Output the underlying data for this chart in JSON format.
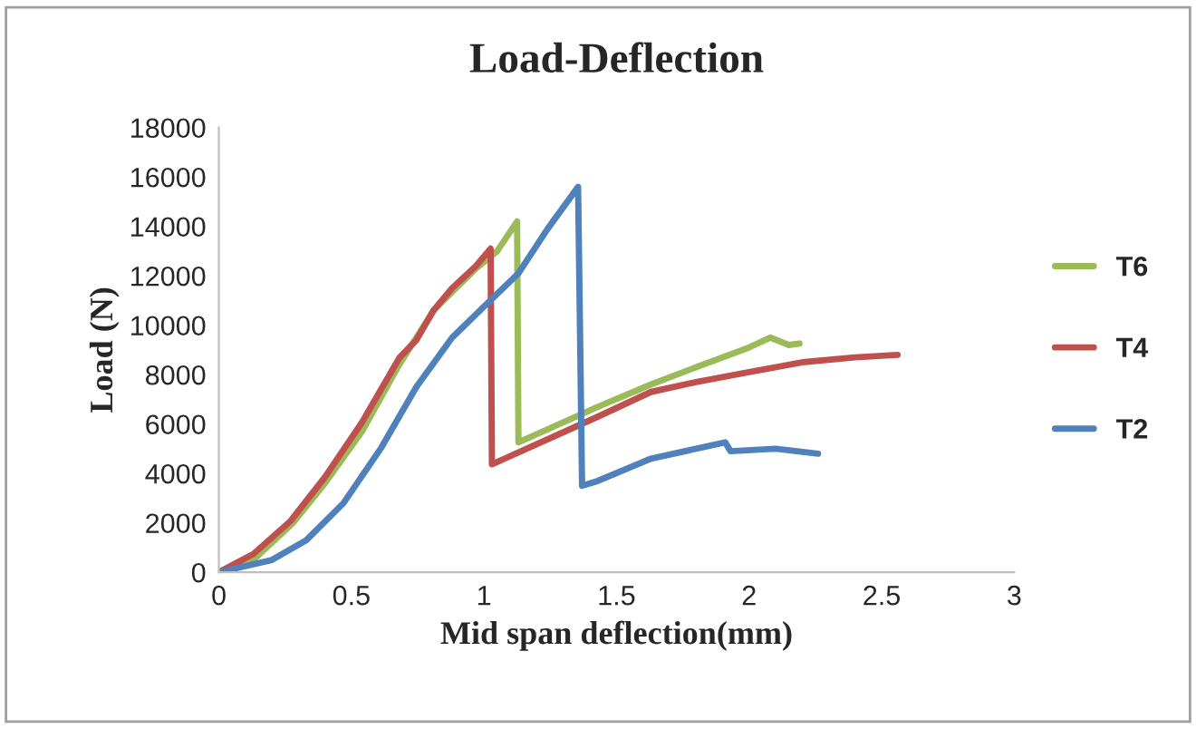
{
  "chart_data": {
    "type": "line",
    "title": "Load-Deflection",
    "xlabel": "Mid span deflection(mm)",
    "ylabel": "Load (N)",
    "xlim": [
      0,
      3
    ],
    "xticks": [
      0,
      0.5,
      1,
      1.5,
      2,
      2.5,
      3
    ],
    "ylim": [
      0,
      18000
    ],
    "yticks": [
      0,
      2000,
      4000,
      6000,
      8000,
      10000,
      12000,
      14000,
      16000,
      18000
    ],
    "grid": false,
    "legend": "right",
    "marker": "none",
    "line_style": "solid",
    "series": [
      {
        "name": "T6",
        "color": "#9bbb59",
        "x": [
          0,
          0.14,
          0.28,
          0.4,
          0.54,
          0.68,
          0.81,
          0.97,
          1.05,
          1.125,
          1.13,
          1.43,
          1.63,
          1.8,
          2.0,
          2.08,
          2.15,
          2.19
        ],
        "values": [
          0,
          600,
          2000,
          3600,
          5700,
          8400,
          10600,
          12300,
          13000,
          14200,
          5260,
          6700,
          7600,
          8300,
          9100,
          9500,
          9200,
          9260
        ]
      },
      {
        "name": "T4",
        "color": "#c0504d",
        "x": [
          0,
          0.13,
          0.27,
          0.4,
          0.54,
          0.68,
          0.745,
          0.81,
          0.88,
          0.97,
          1.025,
          1.03,
          1.43,
          1.63,
          1.8,
          2.0,
          2.2,
          2.4,
          2.56
        ],
        "values": [
          0,
          740,
          2070,
          3850,
          6070,
          8670,
          9400,
          10600,
          11500,
          12400,
          13100,
          4370,
          6300,
          7300,
          7700,
          8100,
          8500,
          8700,
          8800
        ]
      },
      {
        "name": "T2",
        "color": "#4f81bd",
        "x": [
          0,
          0.2,
          0.33,
          0.47,
          0.61,
          0.745,
          0.88,
          0.995,
          1.13,
          1.24,
          1.355,
          1.37,
          1.43,
          1.63,
          1.8,
          1.91,
          1.93,
          2.1,
          2.26
        ],
        "values": [
          0,
          500,
          1300,
          2800,
          5000,
          7500,
          9500,
          10700,
          12100,
          13900,
          15600,
          3500,
          3700,
          4600,
          5000,
          5260,
          4900,
          5000,
          4800
        ]
      }
    ]
  }
}
